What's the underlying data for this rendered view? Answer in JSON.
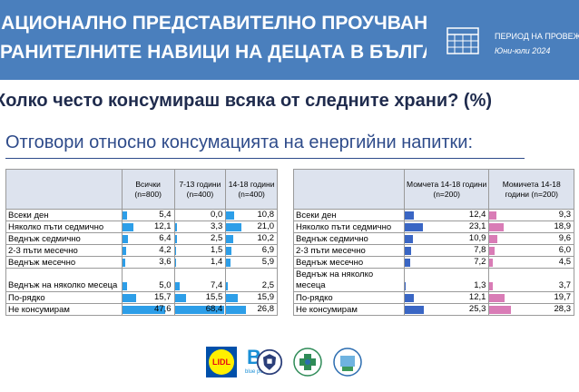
{
  "banner": {
    "line1": "НАЦИОНАЛНО ПРЕДСТАВИТЕЛНО ПРОУЧВАНЕ ЗА",
    "line2": "ХРАНИТЕЛНИТЕ НАВИЦИ НА ДЕЦАТА В БЪЛГАРИЯ",
    "period_label": "ПЕРИОД НА ПРОВЕЖДАНЕ",
    "period_value": "Юни-юли 2024"
  },
  "question": "Колко често консумираш всяка от следните храни? (%)",
  "subtitle": "Отговори относно консумацията на енергийни напитки:",
  "colors": {
    "banner": "#4a7fbd",
    "bar_blue": "#2d9ee8",
    "bar_navy": "#3a66c4",
    "bar_pink": "#d97cb6",
    "header_bg": "#dde3ee"
  },
  "rows": [
    "Всеки ден",
    "Няколко пъти седмично",
    "Веднъж седмично",
    "2-3 пъти месечно",
    "Веднъж месечно",
    "Веднъж на няколко месеца",
    "По-рядко",
    "Не консумирам"
  ],
  "left_table": {
    "columns": [
      {
        "label": "Всички (n=800)",
        "values": [
          "5,4",
          "12,1",
          "6,4",
          "4,2",
          "3,6",
          "5,0",
          "15,7",
          "47,6"
        ],
        "num": [
          5.4,
          12.1,
          6.4,
          4.2,
          3.6,
          5.0,
          15.7,
          47.6
        ]
      },
      {
        "label": "7-13 години (n=400)",
        "values": [
          "0,0",
          "3,3",
          "2,5",
          "1,5",
          "1,4",
          "7,4",
          "15,5",
          "68,4"
        ],
        "num": [
          0.0,
          3.3,
          2.5,
          1.5,
          1.4,
          7.4,
          15.5,
          68.4
        ]
      },
      {
        "label": "14-18 години (n=400)",
        "values": [
          "10,8",
          "21,0",
          "10,2",
          "6,9",
          "5,9",
          "2,5",
          "15,9",
          "26,8"
        ],
        "num": [
          10.8,
          21.0,
          10.2,
          6.9,
          5.9,
          2.5,
          15.9,
          26.8
        ]
      }
    ]
  },
  "right_table": {
    "columns": [
      {
        "label": "Момчета 14-18 години (n=200)",
        "values": [
          "12,4",
          "23,1",
          "10,9",
          "7,8",
          "7,2",
          "1,3",
          "12,1",
          "25,3"
        ],
        "num": [
          12.4,
          23.1,
          10.9,
          7.8,
          7.2,
          1.3,
          12.1,
          25.3
        ]
      },
      {
        "label": "Момичета 14-18 години (n=200)",
        "values": [
          "9,3",
          "18,9",
          "9,6",
          "6,0",
          "4,5",
          "3,7",
          "19,7",
          "28,3"
        ],
        "num": [
          9.3,
          18.9,
          9.6,
          6.0,
          4.5,
          3.7,
          19.7,
          28.3
        ]
      }
    ]
  },
  "logos": [
    {
      "name": "lidl-logo",
      "text": "LIDL"
    },
    {
      "name": "blue-point-logo",
      "text": "blue point"
    },
    {
      "name": "shield-logo",
      "text": ""
    },
    {
      "name": "health-cross-logo",
      "text": ""
    },
    {
      "name": "dietitians-logo",
      "text": ""
    }
  ]
}
